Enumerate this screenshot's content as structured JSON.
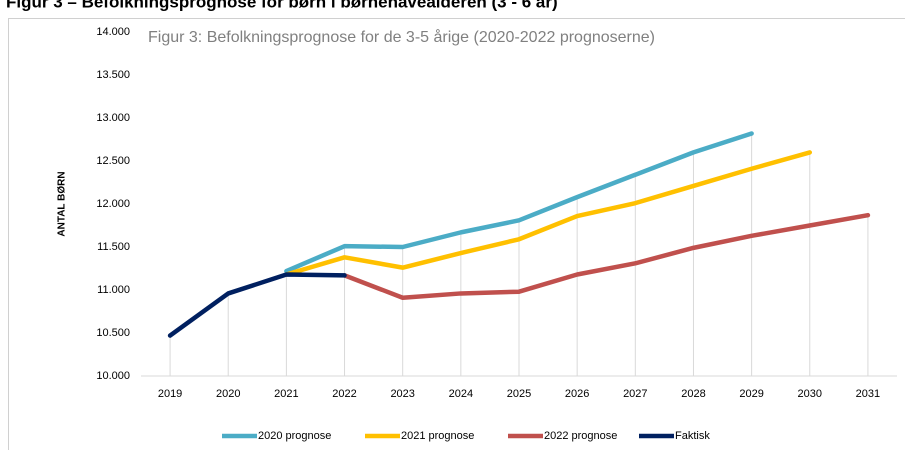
{
  "header": {
    "title": "Figur 3 – Befolkningsprognose for børn i børnehavealderen (3 - 6 år)"
  },
  "chart_data": {
    "type": "line",
    "title": "Figur 3: Befolkningsprognose for de 3-5 årige (2020-2022 prognoserne)",
    "y_label": "ANTAL BØRN",
    "categories": [
      "2019",
      "2020",
      "2021",
      "2022",
      "2023",
      "2024",
      "2025",
      "2026",
      "2027",
      "2028",
      "2029",
      "2030",
      "2031"
    ],
    "series": [
      {
        "name": "2020 prognose",
        "color": "#4bacc6",
        "values": [
          null,
          null,
          11220,
          11510,
          11500,
          11670,
          11810,
          12080,
          12340,
          12600,
          12820,
          null,
          null
        ]
      },
      {
        "name": "2021 prognose",
        "color": "#ffc000",
        "values": [
          null,
          null,
          11180,
          11380,
          11260,
          11430,
          11590,
          11860,
          12010,
          12210,
          12410,
          12600,
          null
        ]
      },
      {
        "name": "2022 prognose",
        "color": "#c0504d",
        "values": [
          null,
          null,
          null,
          11170,
          10910,
          10960,
          10980,
          11180,
          11310,
          11490,
          11630,
          11750,
          11870
        ]
      },
      {
        "name": "Faktisk",
        "color": "#002060",
        "values": [
          10470,
          10960,
          11180,
          11170,
          null,
          null,
          null,
          null,
          null,
          null,
          null,
          null,
          null
        ]
      }
    ],
    "ylim": [
      10000,
      14000
    ],
    "yticks": [
      {
        "value": 10000,
        "label": "10.000"
      },
      {
        "value": 10500,
        "label": "10.500"
      },
      {
        "value": 11000,
        "label": "11.000"
      },
      {
        "value": 11500,
        "label": "11.500"
      },
      {
        "value": 12000,
        "label": "12.000"
      },
      {
        "value": 12500,
        "label": "12.500"
      },
      {
        "value": 13000,
        "label": "13.000"
      },
      {
        "value": 13500,
        "label": "13.500"
      },
      {
        "value": 14000,
        "label": "14.000"
      }
    ],
    "drop_lines": true,
    "legend": "bottom"
  }
}
